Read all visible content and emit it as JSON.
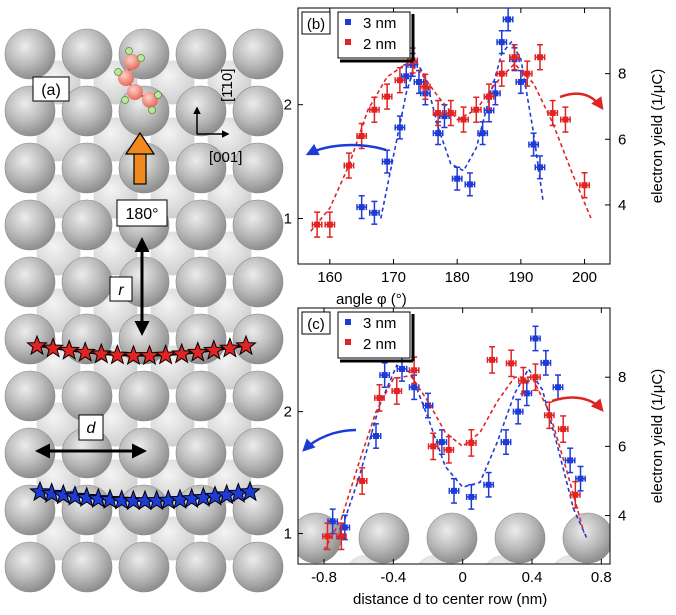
{
  "panel_a": {
    "label": "(a)",
    "direction_up": "[1̄10]",
    "direction_right": "[001]",
    "angle_label": "180°",
    "r_label": "r",
    "d_label": "d"
  },
  "colors": {
    "blue": "#1f3bd6",
    "red": "#e02424",
    "arrow_orange": "#f08a1e",
    "atom": "#b4b4b4"
  },
  "chart_data": [
    {
      "type": "scatter",
      "panel": "(b)",
      "xlabel": "angle φ (°)",
      "ylabel_left": "",
      "ylabel_right": "electron yield (1/μC)",
      "xlim": [
        155,
        204
      ],
      "ylim_left": [
        0.6,
        2.85
      ],
      "ylim_right": [
        2.2,
        10.0
      ],
      "xticks": [
        160,
        170,
        180,
        190,
        200
      ],
      "yticks_left": [
        1,
        2
      ],
      "yticks_right": [
        4,
        6,
        8
      ],
      "legend": [
        "3 nm",
        "2 nm"
      ],
      "legend_position": "top-left",
      "series": [
        {
          "name": "3 nm",
          "color": "#1f3bd6",
          "axis": "left",
          "x": [
            165,
            167,
            169,
            171,
            172,
            173,
            174,
            175,
            177,
            178,
            180,
            182,
            184,
            185,
            186,
            187,
            188,
            189,
            190,
            192,
            193
          ],
          "y": [
            1.1,
            1.05,
            1.5,
            1.8,
            2.25,
            2.35,
            2.2,
            2.1,
            1.75,
            1.9,
            1.35,
            1.3,
            1.75,
            1.95,
            2.1,
            2.55,
            2.75,
            2.4,
            2.2,
            1.65,
            1.45
          ],
          "fit_x": [
            168,
            170,
            172,
            173.5,
            175,
            177,
            179,
            181,
            183,
            185,
            187,
            188.5,
            190,
            192,
            193.5
          ],
          "fit_y": [
            1.0,
            1.55,
            2.1,
            2.38,
            2.25,
            1.8,
            1.48,
            1.42,
            1.62,
            2.05,
            2.45,
            2.55,
            2.4,
            1.75,
            1.15
          ]
        },
        {
          "name": "2 nm",
          "color": "#e02424",
          "axis": "right",
          "x": [
            158,
            160,
            163,
            165,
            167,
            169,
            171,
            173,
            175,
            177,
            179,
            181,
            183,
            185,
            187,
            189,
            191,
            193,
            195,
            197,
            200
          ],
          "y": [
            3.4,
            3.4,
            5.2,
            6.1,
            6.9,
            7.3,
            7.8,
            8.4,
            7.6,
            6.8,
            6.8,
            6.6,
            6.9,
            7.3,
            8.0,
            8.5,
            8.0,
            8.5,
            6.8,
            6.6,
            4.6
          ],
          "fit_x": [
            157,
            160,
            163,
            166,
            169,
            172,
            174,
            177,
            180,
            183,
            186,
            189,
            192,
            195,
            198,
            201
          ],
          "fit_y": [
            3.2,
            3.9,
            5.2,
            6.9,
            7.9,
            8.3,
            8.1,
            7.3,
            6.6,
            6.9,
            7.7,
            8.3,
            7.7,
            6.5,
            5.0,
            3.6
          ]
        }
      ]
    },
    {
      "type": "scatter",
      "panel": "(c)",
      "xlabel": "distance d to center row (nm)",
      "ylabel_left": "",
      "ylabel_right": "electron yield (1/μC)",
      "xlim": [
        -0.95,
        0.85
      ],
      "ylim_left": [
        0.75,
        2.85
      ],
      "ylim_right": [
        2.6,
        10.0
      ],
      "xticks": [
        -0.8,
        -0.4,
        0,
        0.4,
        0.8
      ],
      "yticks_left": [
        1,
        2
      ],
      "yticks_right": [
        4,
        6,
        8
      ],
      "legend": [
        "3 nm",
        "2 nm"
      ],
      "legend_position": "top-left",
      "series": [
        {
          "name": "3 nm",
          "color": "#1f3bd6",
          "axis": "left",
          "x": [
            -0.75,
            -0.68,
            -0.5,
            -0.45,
            -0.35,
            -0.28,
            -0.2,
            -0.12,
            -0.05,
            0.05,
            0.15,
            0.25,
            0.32,
            0.37,
            0.42,
            0.48,
            0.55,
            0.62,
            0.68
          ],
          "y": [
            1.1,
            1.05,
            1.8,
            2.3,
            2.35,
            2.2,
            2.05,
            1.75,
            1.35,
            1.3,
            1.4,
            1.75,
            2.0,
            2.15,
            2.6,
            2.4,
            2.2,
            1.6,
            1.45
          ],
          "fit_x": [
            -0.72,
            -0.6,
            -0.48,
            -0.38,
            -0.3,
            -0.2,
            -0.1,
            0.0,
            0.1,
            0.2,
            0.3,
            0.38,
            0.46,
            0.55,
            0.64,
            0.72
          ],
          "fit_y": [
            0.95,
            1.45,
            2.05,
            2.38,
            2.32,
            1.95,
            1.55,
            1.38,
            1.42,
            1.75,
            2.15,
            2.35,
            2.18,
            1.7,
            1.2,
            0.95
          ]
        },
        {
          "name": "2 nm",
          "color": "#e02424",
          "axis": "right",
          "x": [
            -0.78,
            -0.7,
            -0.58,
            -0.48,
            -0.38,
            -0.28,
            -0.17,
            -0.08,
            0.05,
            0.17,
            0.28,
            0.35,
            0.42,
            0.5,
            0.58,
            0.65
          ],
          "y": [
            3.4,
            3.4,
            5.0,
            7.4,
            7.6,
            8.2,
            6.0,
            5.9,
            6.1,
            8.5,
            8.4,
            7.9,
            8.0,
            6.9,
            6.5,
            4.6
          ],
          "fit_x": [
            -0.8,
            -0.7,
            -0.6,
            -0.5,
            -0.4,
            -0.3,
            -0.2,
            -0.1,
            0.0,
            0.1,
            0.2,
            0.3,
            0.4,
            0.5,
            0.6,
            0.7
          ],
          "fit_y": [
            3.0,
            3.9,
            5.5,
            7.0,
            7.95,
            8.05,
            7.3,
            6.4,
            6.0,
            6.4,
            7.3,
            8.0,
            8.0,
            7.0,
            5.3,
            3.5
          ]
        }
      ]
    }
  ]
}
